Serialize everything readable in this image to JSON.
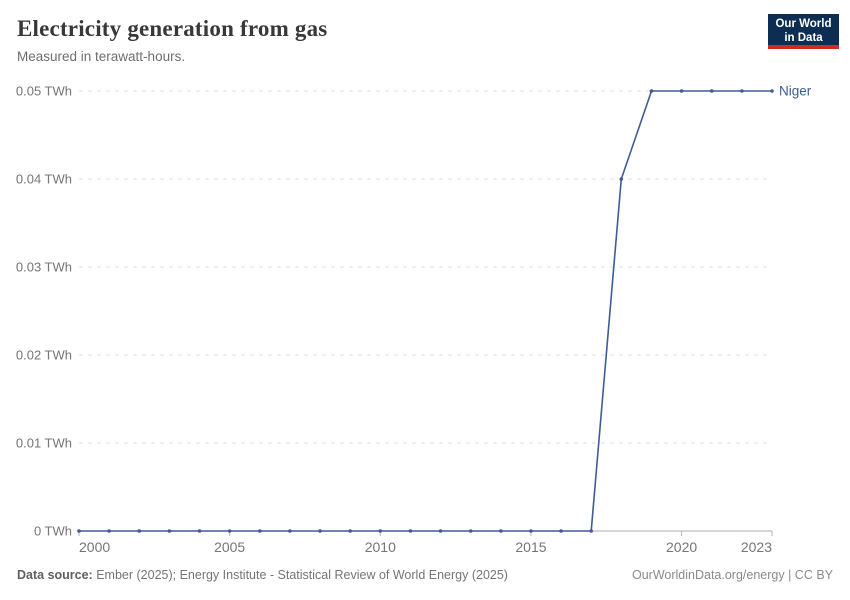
{
  "header": {
    "title": "Electricity generation from gas",
    "subtitle": "Measured in terawatt-hours."
  },
  "logo": {
    "line1": "Our World",
    "line2": "in Data",
    "background_color": "#0d2e52",
    "accent_color": "#cf2d1c"
  },
  "footer": {
    "source_label": "Data source:",
    "source_text": " Ember (2025); Energy Institute - Statistical Review of World Energy (2025)",
    "license": "OurWorldinData.org/energy | CC BY"
  },
  "chart_data": {
    "type": "line",
    "title": "Electricity generation from gas",
    "ylabel": "",
    "xlabel": "",
    "grid": "horizontal-dashed",
    "legend": "end-of-line-label",
    "xlim": [
      2000,
      2023
    ],
    "ylim": [
      0,
      0.05
    ],
    "xticks": [
      2000,
      2005,
      2010,
      2015,
      2020,
      2023
    ],
    "xtick_labels": [
      "2000",
      "2005",
      "2010",
      "2015",
      "2020",
      "2023"
    ],
    "yticks": [
      0,
      0.01,
      0.02,
      0.03,
      0.04,
      0.05
    ],
    "ytick_labels": [
      "0 TWh",
      "0.01 TWh",
      "0.02 TWh",
      "0.03 TWh",
      "0.04 TWh",
      "0.05 TWh"
    ],
    "x": [
      2000,
      2001,
      2002,
      2003,
      2004,
      2005,
      2006,
      2007,
      2008,
      2009,
      2010,
      2011,
      2012,
      2013,
      2014,
      2015,
      2016,
      2017,
      2018,
      2019,
      2020,
      2021,
      2022,
      2023
    ],
    "series": [
      {
        "name": "Niger",
        "color": "#3e5d96",
        "values": [
          0,
          0,
          0,
          0,
          0,
          0,
          0,
          0,
          0,
          0,
          0,
          0,
          0,
          0,
          0,
          0,
          0,
          0,
          0.04,
          0.05,
          0.05,
          0.05,
          0.05,
          0.05
        ]
      }
    ],
    "colors": {
      "gridline": "#dcdcdc",
      "zero_line": "#adadad",
      "tick": "#b5b5b5",
      "axis_text": "#757575"
    }
  }
}
